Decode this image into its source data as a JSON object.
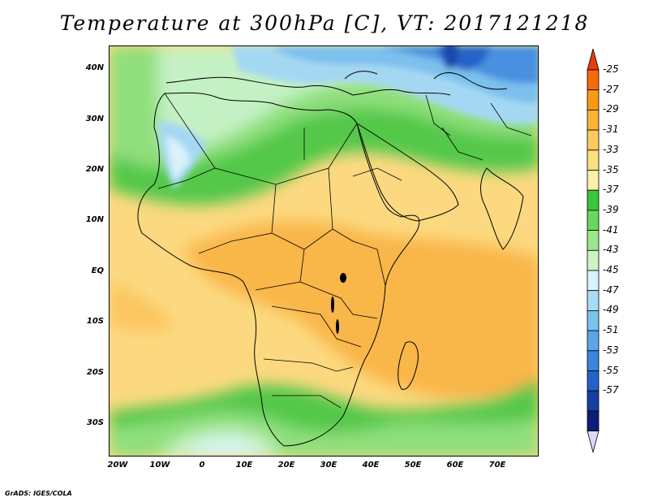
{
  "title": "Temperature at 300hPa [C], VT: 2017121218",
  "footer": "GrADS: IGES/COLA",
  "map": {
    "lon_range": [
      -23,
      79
    ],
    "lat_range": [
      -37,
      46
    ],
    "lat_ticks": [
      {
        "value": 40,
        "label": "40N"
      },
      {
        "value": 30,
        "label": "30N"
      },
      {
        "value": 20,
        "label": "20N"
      },
      {
        "value": 10,
        "label": "10N"
      },
      {
        "value": 0,
        "label": "EQ"
      },
      {
        "value": -10,
        "label": "10S"
      },
      {
        "value": -20,
        "label": "20S"
      },
      {
        "value": -30,
        "label": "30S"
      }
    ],
    "lon_ticks": [
      {
        "value": -20,
        "label": "20W"
      },
      {
        "value": -10,
        "label": "10W"
      },
      {
        "value": 0,
        "label": "0"
      },
      {
        "value": 10,
        "label": "10E"
      },
      {
        "value": 20,
        "label": "20E"
      },
      {
        "value": 30,
        "label": "30E"
      },
      {
        "value": 40,
        "label": "40E"
      },
      {
        "value": 50,
        "label": "50E"
      },
      {
        "value": 60,
        "label": "60E"
      },
      {
        "value": 70,
        "label": "70E"
      }
    ]
  },
  "colorbar": {
    "labels": [
      "-25",
      "-27",
      "-29",
      "-31",
      "-33",
      "-35",
      "-37",
      "-39",
      "-41",
      "-43",
      "-45",
      "-47",
      "-49",
      "-51",
      "-53",
      "-55",
      "-57"
    ],
    "colors": [
      "#e83a0c",
      "#f56c0a",
      "#f99a14",
      "#fab43a",
      "#fccb5c",
      "#fde07e",
      "#fcf0a8",
      "#3cc63c",
      "#6ad65e",
      "#9ee68c",
      "#cdf5c4",
      "#d8f4fa",
      "#a8dcf4",
      "#7cc2ee",
      "#5aa6e8",
      "#3c84dc",
      "#2462c8",
      "#1440a4",
      "#0c1e78",
      "#ddd8f4"
    ]
  }
}
